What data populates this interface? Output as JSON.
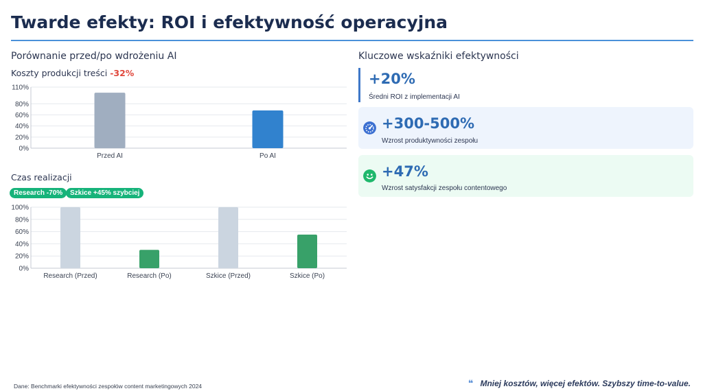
{
  "title": "Twarde efekty: ROI i efektywność operacyjna",
  "left": {
    "section_title": "Porównanie przed/po wdrożeniu AI",
    "cost_chart": {
      "title_prefix": "Koszty produkcji treści",
      "title_change": "-32%"
    },
    "time_chart": {
      "title": "Czas realizacji",
      "badges": [
        "Research -70%",
        "Szkice +45% szybciej"
      ]
    }
  },
  "right": {
    "section_title": "Kluczowe wskaźniki efektywności",
    "kpis": [
      {
        "value": "+20%",
        "desc": "Średni ROI z implementacji AI",
        "icon": "none"
      },
      {
        "value": "+300-500%",
        "desc": "Wzrost produktywności zespołu",
        "icon": "speedometer-icon"
      },
      {
        "value": "+47%",
        "desc": "Wzrost satysfakcji zespołu contentowego",
        "icon": "smile-icon"
      }
    ]
  },
  "footer": {
    "source": "Dane: Benchmarki efektywności zespołów content marketingowych 2024",
    "quote": "Mniej kosztów, więcej efektów. Szybszy time-to-value."
  },
  "chart_data": [
    {
      "type": "bar",
      "title": "Koszty produkcji treści",
      "categories": [
        "Przed AI",
        "Po AI"
      ],
      "values": [
        100,
        68
      ],
      "colors": [
        "#a0aec0",
        "#3182ce"
      ],
      "ylim": [
        0,
        110
      ],
      "yticks": [
        0,
        20,
        40,
        60,
        80,
        110
      ],
      "ytick_format": "percent",
      "grid": true,
      "legend": "none"
    },
    {
      "type": "bar",
      "title": "Czas realizacji",
      "categories": [
        "Research (Przed)",
        "Research (Po)",
        "Szkice (Przed)",
        "Szkice (Po)"
      ],
      "values": [
        100,
        30,
        100,
        55
      ],
      "colors": [
        "#cbd5e0",
        "#38a169",
        "#cbd5e0",
        "#38a169"
      ],
      "ylim": [
        0,
        100
      ],
      "yticks": [
        0,
        20,
        40,
        60,
        80,
        100
      ],
      "ytick_format": "percent",
      "grid": true,
      "legend": "none"
    }
  ]
}
